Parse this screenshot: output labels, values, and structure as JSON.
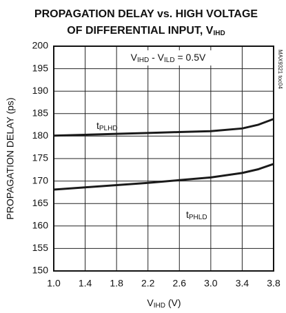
{
  "chart_data": {
    "type": "line",
    "title": [
      [
        {
          "text": "PROPAGATION DELAY vs. HIGH VOLTAGE",
          "sub": false
        }
      ],
      [
        {
          "text": "OF DIFFERENTIAL INPUT, V",
          "sub": false
        },
        {
          "text": "IHD",
          "sub": true
        }
      ]
    ],
    "x_label": [
      {
        "text": "V",
        "sub": false
      },
      {
        "text": "IHD",
        "sub": true
      },
      {
        "text": " (V)",
        "sub": false
      }
    ],
    "y_label": "PROPAGATION DELAY (ps)",
    "annotation": [
      {
        "text": "V",
        "sub": false
      },
      {
        "text": "IHD",
        "sub": true
      },
      {
        "text": " - V",
        "sub": false
      },
      {
        "text": "ILD",
        "sub": true
      },
      {
        "text": " = 0.5V",
        "sub": false
      }
    ],
    "side_note": "MAX9321 toc04",
    "x": [
      1.0,
      1.4,
      1.8,
      2.2,
      2.6,
      3.0,
      3.4,
      3.6,
      3.8
    ],
    "series": [
      {
        "name": [
          {
            "text": "t",
            "sub": false
          },
          {
            "text": "PLHD",
            "sub": true
          }
        ],
        "color": "#1a1a1a",
        "values": [
          180.1,
          180.3,
          180.5,
          180.7,
          180.9,
          181.1,
          181.7,
          182.5,
          183.8
        ]
      },
      {
        "name": [
          {
            "text": "t",
            "sub": false
          },
          {
            "text": "PHLD",
            "sub": true
          }
        ],
        "color": "#1a1a1a",
        "values": [
          168.1,
          168.6,
          169.1,
          169.6,
          170.2,
          170.8,
          171.8,
          172.6,
          173.8
        ]
      }
    ],
    "xlim": [
      1.0,
      3.8
    ],
    "xticks": [
      {
        "value": 1,
        "label": "1.0"
      },
      1.4,
      1.8,
      2.2,
      2.6,
      {
        "value": 3,
        "label": "3.0"
      },
      3.4,
      3.8
    ],
    "ylim": [
      150,
      200
    ],
    "yticks": [
      150,
      155,
      160,
      165,
      170,
      175,
      180,
      185,
      190,
      195,
      200
    ],
    "grid": true
  }
}
